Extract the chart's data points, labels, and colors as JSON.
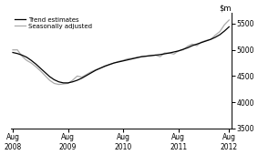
{
  "title": "",
  "ylim": [
    3500,
    5700
  ],
  "yticks": [
    3500,
    4000,
    4500,
    5000,
    5500
  ],
  "xtick_labels": [
    "Aug\n2008",
    "Aug\n2009",
    "Aug\n2010",
    "Aug\n2011",
    "Aug\n2012"
  ],
  "legend_entries": [
    "Trend estimates",
    "Seasonally adjusted"
  ],
  "trend_color": "#000000",
  "seasonal_color": "#aaaaaa",
  "background_color": "#ffffff",
  "trend_data": [
    4950,
    4930,
    4900,
    4860,
    4800,
    4730,
    4650,
    4570,
    4490,
    4430,
    4390,
    4370,
    4370,
    4390,
    4420,
    4460,
    4510,
    4560,
    4610,
    4650,
    4690,
    4720,
    4750,
    4770,
    4790,
    4810,
    4830,
    4850,
    4870,
    4880,
    4890,
    4900,
    4910,
    4925,
    4940,
    4960,
    4980,
    5010,
    5040,
    5080,
    5110,
    5140,
    5170,
    5200,
    5240,
    5290,
    5360,
    5440
  ],
  "seasonal_data": [
    5000,
    5000,
    4880,
    4800,
    4750,
    4680,
    4600,
    4510,
    4420,
    4360,
    4340,
    4350,
    4360,
    4420,
    4500,
    4480,
    4530,
    4580,
    4620,
    4650,
    4680,
    4720,
    4750,
    4780,
    4800,
    4830,
    4840,
    4860,
    4870,
    4880,
    4890,
    4900,
    4870,
    4940,
    4940,
    4920,
    4980,
    5000,
    5070,
    5110,
    5080,
    5150,
    5180,
    5200,
    5280,
    5350,
    5480,
    5570
  ],
  "n_points": 48,
  "x_tick_positions": [
    0,
    12,
    24,
    36,
    47
  ]
}
